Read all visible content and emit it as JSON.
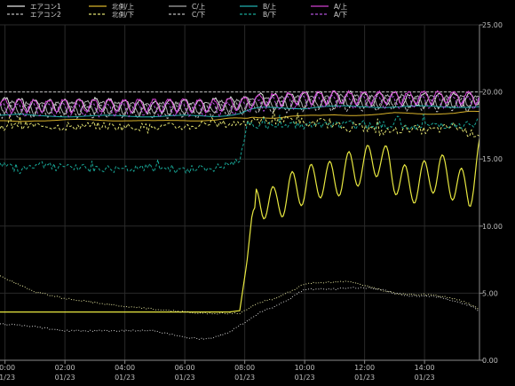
{
  "chart_data": {
    "type": "line",
    "title": "",
    "xlabel": "",
    "ylabel": "",
    "background": "#000000",
    "grid": true,
    "legend_position": "top",
    "ylim": [
      0,
      25
    ],
    "xlim": [
      "01/22 23:50",
      "01/23 15:50"
    ],
    "x_ticks": [
      {
        "time": "00:00",
        "date": "01/23"
      },
      {
        "time": "02:00",
        "date": "01/23"
      },
      {
        "time": "04:00",
        "date": "01/23"
      },
      {
        "time": "06:00",
        "date": "01/23"
      },
      {
        "time": "08:00",
        "date": "01/23"
      },
      {
        "time": "10:00",
        "date": "01/23"
      },
      {
        "time": "12:00",
        "date": "01/23"
      },
      {
        "time": "14:00",
        "date": "01/23"
      }
    ],
    "y_ticks": [
      "0.00",
      "5.00",
      "10.00",
      "15.00",
      "20.00",
      "25.00"
    ],
    "x": [
      "23:50",
      "00:30",
      "01:00",
      "02:00",
      "03:00",
      "04:00",
      "05:00",
      "06:00",
      "06:30",
      "07:00",
      "07:30",
      "07:50",
      "08:05",
      "08:15",
      "08:30",
      "09:00",
      "09:30",
      "10:00",
      "10:30",
      "11:00",
      "11:30",
      "12:00",
      "12:30",
      "13:00",
      "13:30",
      "14:00",
      "14:30",
      "15:00",
      "15:30",
      "15:50"
    ],
    "series": [
      {
        "name": "エアコン1",
        "color": "#e6e6e6",
        "dash": "solid",
        "kind": "osc",
        "values": [
          19.6,
          19.5,
          19.4,
          19.4,
          19.5,
          19.4,
          19.3,
          19.4,
          19.4,
          19.5,
          19.6,
          19.6,
          19.7,
          19.8,
          19.9,
          19.8,
          19.9,
          20.0,
          20.0,
          20.0,
          20.0,
          19.9,
          19.9,
          20.0,
          19.8,
          19.9,
          19.9,
          19.9,
          19.9,
          19.9
        ]
      },
      {
        "name": "エアコン2",
        "color": "#bdbdbd",
        "dash": "dashed",
        "kind": "flat",
        "values": [
          20.0,
          20.0,
          20.0,
          20.0,
          20.0,
          20.0,
          20.0,
          20.0,
          20.0,
          20.0,
          20.0,
          20.0,
          20.0,
          20.0,
          20.0,
          20.0,
          20.0,
          20.0,
          20.0,
          20.0,
          20.0,
          20.0,
          20.0,
          20.0,
          20.0,
          20.0,
          20.0,
          20.0,
          20.0,
          20.0
        ]
      },
      {
        "name": "北側/上",
        "color": "#d8b22a",
        "dash": "solid",
        "kind": "smooth",
        "values": [
          17.8,
          17.8,
          17.9,
          17.9,
          17.9,
          17.9,
          17.8,
          17.9,
          17.9,
          17.9,
          18.0,
          18.0,
          18.0,
          18.1,
          18.1,
          18.1,
          18.2,
          18.2,
          18.2,
          18.3,
          18.3,
          18.3,
          18.3,
          18.4,
          18.4,
          18.4,
          18.4,
          18.4,
          18.5,
          18.5
        ]
      },
      {
        "name": "北側/下",
        "color": "#e0e070",
        "dash": "dashed",
        "kind": "noisy",
        "values": [
          17.4,
          17.5,
          17.5,
          17.4,
          17.5,
          17.4,
          17.4,
          17.4,
          17.5,
          17.6,
          17.6,
          17.7,
          17.8,
          17.7,
          17.9,
          17.9,
          18.0,
          17.5,
          17.8,
          17.5,
          17.3,
          17.4,
          17.0,
          17.1,
          17.3,
          17.1,
          17.2,
          17.5,
          16.9,
          16.9
        ]
      },
      {
        "name": "C/上",
        "color": "#a8a8a8",
        "dash": "solid",
        "kind": "osc",
        "values": [
          19.3,
          19.2,
          19.2,
          19.2,
          19.3,
          19.2,
          19.2,
          19.2,
          19.2,
          19.3,
          19.3,
          19.4,
          19.5,
          19.5,
          19.6,
          19.6,
          19.6,
          19.7,
          19.7,
          19.7,
          19.8,
          19.7,
          19.7,
          19.8,
          19.7,
          19.7,
          19.7,
          19.7,
          19.7,
          19.7
        ]
      },
      {
        "name": "C/下",
        "color": "#bbbbbb",
        "dash": "dashed",
        "kind": "osc",
        "values": [
          19.0,
          19.0,
          19.0,
          19.0,
          19.0,
          19.0,
          19.0,
          19.0,
          19.0,
          19.1,
          19.1,
          19.2,
          19.3,
          19.3,
          19.4,
          19.4,
          19.4,
          19.5,
          19.5,
          19.5,
          19.5,
          19.5,
          19.5,
          19.6,
          19.5,
          19.5,
          19.5,
          19.5,
          19.5,
          19.5
        ]
      },
      {
        "name": "B/上",
        "color": "#20b0b0",
        "dash": "solid",
        "kind": "smooth",
        "values": [
          18.3,
          18.3,
          18.2,
          18.2,
          18.2,
          18.2,
          18.2,
          18.2,
          18.2,
          18.2,
          18.3,
          18.4,
          18.6,
          18.7,
          18.8,
          18.8,
          18.8,
          18.8,
          18.9,
          18.9,
          18.9,
          18.9,
          18.9,
          18.9,
          18.9,
          18.9,
          18.9,
          18.9,
          18.9,
          18.9
        ]
      },
      {
        "name": "B/下",
        "color": "#18a898",
        "dash": "dashed",
        "kind": "noisy",
        "values": [
          14.7,
          14.2,
          14.6,
          14.3,
          14.3,
          14.2,
          14.4,
          14.2,
          14.3,
          14.3,
          14.6,
          14.8,
          17.6,
          17.5,
          17.6,
          17.4,
          17.6,
          17.5,
          17.6,
          17.5,
          17.6,
          17.5,
          17.6,
          17.5,
          17.4,
          17.5,
          17.6,
          17.5,
          17.6,
          17.8
        ]
      },
      {
        "name": "A/上",
        "color": "#d040d0",
        "dash": "solid",
        "kind": "osc",
        "values": [
          19.4,
          19.4,
          19.4,
          19.4,
          19.4,
          19.4,
          19.4,
          19.4,
          19.4,
          19.4,
          19.5,
          19.5,
          19.6,
          19.7,
          19.8,
          19.9,
          19.9,
          20.0,
          20.0,
          20.0,
          20.0,
          20.0,
          20.0,
          20.0,
          20.0,
          20.0,
          20.0,
          20.0,
          20.0,
          20.0
        ]
      },
      {
        "name": "A/下",
        "color": "#b050d8",
        "dash": "dashed",
        "kind": "osc",
        "values": [
          19.1,
          19.1,
          19.1,
          19.1,
          19.1,
          19.1,
          19.1,
          19.1,
          19.1,
          19.1,
          19.2,
          19.2,
          19.3,
          19.4,
          19.5,
          19.6,
          19.6,
          19.7,
          19.7,
          19.7,
          19.7,
          19.7,
          19.7,
          19.7,
          19.7,
          19.7,
          19.7,
          19.7,
          19.7,
          19.7
        ]
      },
      {
        "color": "#e8e840",
        "dash": "solid",
        "kind": "raw",
        "values": [
          3.6,
          3.6,
          3.6,
          3.6,
          3.6,
          3.6,
          3.6,
          3.6,
          3.6,
          3.6,
          3.6,
          3.7,
          7.5,
          11.0,
          12.1,
          11.5,
          12.6,
          13.0,
          13.5,
          13.4,
          14.2,
          14.5,
          15.2,
          13.8,
          12.9,
          13.5,
          14.1,
          13.2,
          12.6,
          15.2
        ]
      },
      {
        "color": "#e8e8a0",
        "dash": "dotted",
        "kind": "raw",
        "values": [
          6.3,
          5.6,
          5.1,
          4.6,
          4.3,
          4.0,
          3.8,
          3.6,
          3.5,
          3.5,
          3.5,
          3.5,
          3.8,
          4.0,
          4.3,
          4.6,
          5.1,
          5.7,
          5.8,
          5.8,
          5.9,
          5.6,
          5.3,
          5.0,
          4.9,
          4.9,
          4.8,
          4.6,
          4.2,
          3.8
        ]
      },
      {
        "color": "#d8d8d8",
        "dash": "dotted",
        "kind": "raw",
        "values": [
          2.7,
          2.6,
          2.5,
          2.2,
          2.2,
          2.2,
          2.2,
          1.7,
          1.6,
          1.7,
          2.1,
          2.6,
          2.9,
          3.2,
          3.6,
          4.0,
          4.6,
          5.3,
          5.3,
          5.3,
          5.4,
          5.4,
          5.3,
          5.0,
          4.8,
          4.8,
          4.7,
          4.4,
          4.1,
          3.7
        ]
      }
    ]
  }
}
